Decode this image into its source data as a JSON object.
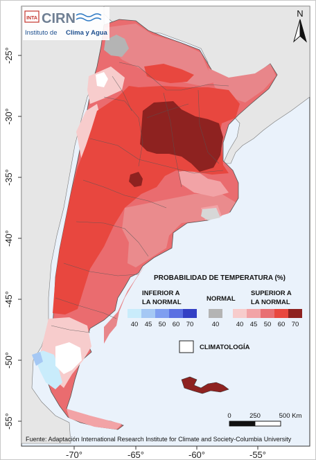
{
  "logo": {
    "badge": "INTA",
    "name": "CIRN",
    "subtitle_prefix": "Instituto de",
    "subtitle_highlight": "Clima y Agua"
  },
  "north_arrow": {
    "label": "N"
  },
  "axes": {
    "lat_labels": [
      "-25°",
      "-30°",
      "-35°",
      "-40°",
      "-45°",
      "-50°",
      "-55°"
    ],
    "lon_labels": [
      "-70°",
      "-65°",
      "-60°",
      "-55°"
    ]
  },
  "legend": {
    "title": "PROBABILIDAD DE TEMPERATURA (%)",
    "below": {
      "label_line1": "INFERIOR A",
      "label_line2": "LA NORMAL",
      "values": [
        "40",
        "45",
        "50",
        "60",
        "70"
      ],
      "colors": [
        "#c9ecfb",
        "#a5c8f4",
        "#7f9ef0",
        "#5a70e2",
        "#3340c4"
      ]
    },
    "normal": {
      "label": "NORMAL",
      "value": "40",
      "color": "#b4b4b4"
    },
    "above": {
      "label_line1": "SUPERIOR A",
      "label_line2": "LA NORMAL",
      "values": [
        "40",
        "45",
        "50",
        "60",
        "70"
      ],
      "colors": [
        "#f7cccc",
        "#f2a3a6",
        "#e86f73",
        "#e8473f",
        "#8e2220"
      ]
    },
    "climatology": {
      "label": "CLIMATOLOGÍA",
      "color": "#ffffff"
    }
  },
  "scale_bar": {
    "labels": [
      "0",
      "250",
      "500 Km"
    ]
  },
  "source": "Fuente: Adaptación International Research Institute for Climate and Society-Columbia University"
}
